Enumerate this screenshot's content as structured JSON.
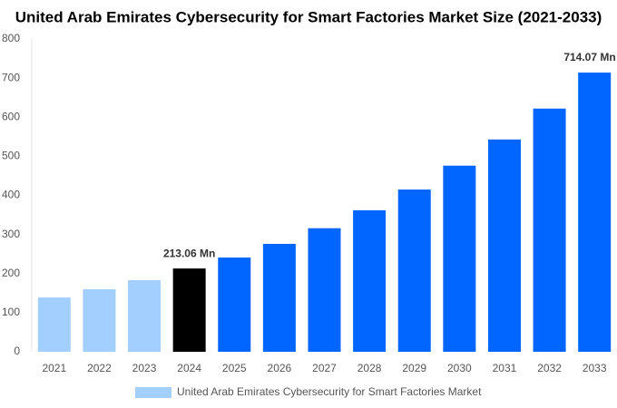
{
  "chart_data": {
    "type": "bar",
    "title": "United Arab Emirates Cybersecurity for Smart Factories Market Size (2021-2033)",
    "categories": [
      "2021",
      "2022",
      "2023",
      "2024",
      "2025",
      "2026",
      "2027",
      "2028",
      "2029",
      "2030",
      "2031",
      "2032",
      "2033"
    ],
    "series": [
      {
        "name": "United Arab Emirates Cybersecurity for Smart Factories Market",
        "color": "#a3cfff",
        "values": [
          139,
          160,
          183,
          213.06,
          241,
          276,
          316,
          362,
          415,
          476,
          543,
          622,
          714.07
        ],
        "colors": [
          "#a3cfff",
          "#a3cfff",
          "#a3cfff",
          "#000000",
          "#0066ff",
          "#0066ff",
          "#0066ff",
          "#0066ff",
          "#0066ff",
          "#0066ff",
          "#0066ff",
          "#0066ff",
          "#0066ff"
        ],
        "value_labels": [
          null,
          null,
          null,
          "213.06 Mn",
          null,
          null,
          null,
          null,
          null,
          null,
          null,
          null,
          "714.07 Mn"
        ]
      }
    ],
    "ylim": [
      0,
      800
    ],
    "yticks": [
      0,
      100,
      200,
      300,
      400,
      500,
      600,
      700,
      800
    ],
    "grid": false
  }
}
